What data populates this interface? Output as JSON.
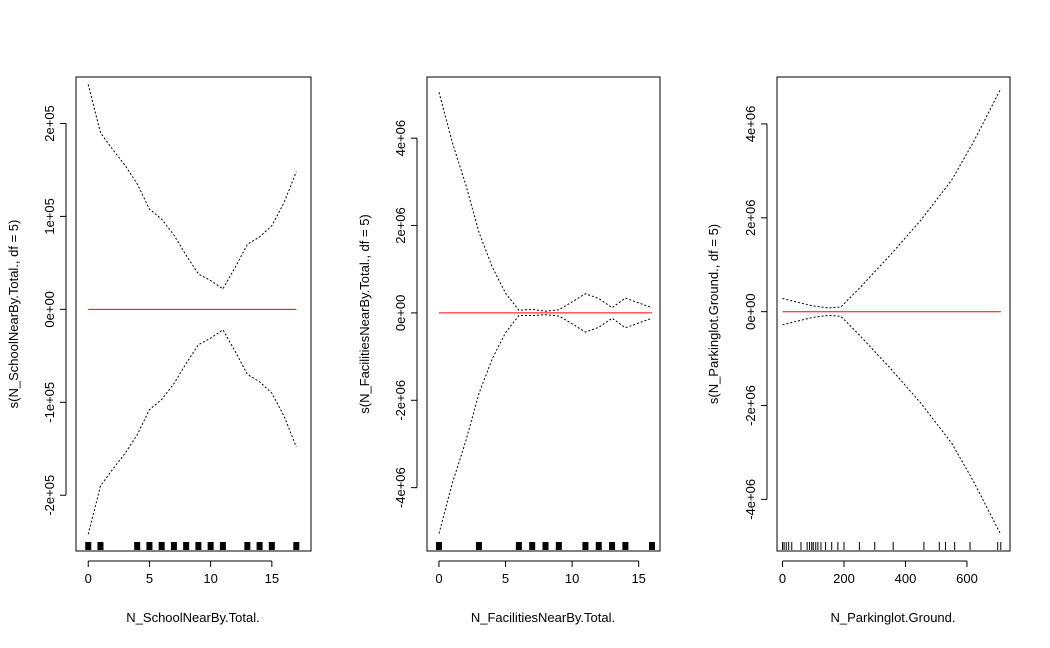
{
  "chart_data": [
    {
      "type": "line",
      "xlabel": "N_SchoolNearBy.Total.",
      "ylabel": "s(N_SchoolNearBy.Total., df = 5)",
      "xlim": [
        -1,
        18.2
      ],
      "ylim": [
        -260000,
        250000
      ],
      "x_ticks": [
        0,
        5,
        10,
        15
      ],
      "x_tick_labels": [
        "0",
        "5",
        "10",
        "15"
      ],
      "y_ticks": [
        -200000,
        -100000,
        0,
        100000,
        200000
      ],
      "y_tick_labels": [
        "-2e+05",
        "-1e+05",
        "0e+00",
        "1e+05",
        "2e+05"
      ],
      "series": [
        {
          "role": "fit",
          "color": "#ff0000",
          "x": [
            0,
            17
          ],
          "y": [
            0,
            0
          ]
        },
        {
          "role": "upper-band",
          "color": "#000000",
          "x": [
            0,
            1,
            2,
            3,
            4,
            5,
            6,
            7,
            8,
            9,
            10,
            11,
            12,
            13,
            14,
            15,
            16,
            17
          ],
          "y": [
            242000,
            190000,
            172000,
            155000,
            135000,
            108000,
            97000,
            80000,
            58000,
            38000,
            31000,
            22000,
            45000,
            70000,
            78000,
            90000,
            115000,
            148000
          ]
        },
        {
          "role": "lower-band",
          "color": "#000000",
          "x": [
            0,
            1,
            2,
            3,
            4,
            5,
            6,
            7,
            8,
            9,
            10,
            11,
            12,
            13,
            14,
            15,
            16,
            17
          ],
          "y": [
            -242000,
            -190000,
            -172000,
            -155000,
            -135000,
            -108000,
            -97000,
            -80000,
            -58000,
            -38000,
            -31000,
            -22000,
            -45000,
            -70000,
            -78000,
            -90000,
            -115000,
            -148000
          ]
        }
      ],
      "rug": [
        0,
        1,
        4,
        5,
        6,
        7,
        8,
        9,
        10,
        11,
        13,
        14,
        15,
        17
      ]
    },
    {
      "type": "line",
      "xlabel": "N_FacilitiesNearBy.Total.",
      "ylabel": "s(N_FacilitiesNearBy.Total., df = 5)",
      "xlim": [
        -0.9,
        16.6
      ],
      "ylim": [
        -5450000,
        5400000
      ],
      "x_ticks": [
        0,
        5,
        10,
        15
      ],
      "x_tick_labels": [
        "0",
        "5",
        "10",
        "15"
      ],
      "y_ticks": [
        -4000000,
        -2000000,
        0,
        2000000,
        4000000
      ],
      "y_tick_labels": [
        "-4e+06",
        "-2e+06",
        "0e+00",
        "2e+06",
        "4e+06"
      ],
      "series": [
        {
          "role": "fit",
          "color": "#ff0000",
          "x": [
            0,
            16
          ],
          "y": [
            0,
            0
          ]
        },
        {
          "role": "upper-band",
          "color": "#000000",
          "x": [
            0,
            1,
            2,
            3,
            4,
            5,
            6,
            7,
            8,
            9,
            10,
            11,
            12,
            13,
            14,
            15,
            16
          ],
          "y": [
            5050000,
            3900000,
            2950000,
            1850000,
            1050000,
            450000,
            60000,
            80000,
            40000,
            70000,
            250000,
            440000,
            330000,
            120000,
            340000,
            230000,
            120000
          ]
        },
        {
          "role": "lower-band",
          "color": "#000000",
          "x": [
            0,
            1,
            2,
            3,
            4,
            5,
            6,
            7,
            8,
            9,
            10,
            11,
            12,
            13,
            14,
            15,
            16
          ],
          "y": [
            -5050000,
            -3900000,
            -2950000,
            -1850000,
            -1050000,
            -450000,
            -60000,
            -60000,
            -40000,
            -70000,
            -250000,
            -440000,
            -330000,
            -120000,
            -340000,
            -230000,
            -120000
          ]
        }
      ],
      "rug": [
        0,
        3,
        6,
        7,
        8,
        9,
        11,
        12,
        13,
        14,
        16
      ]
    },
    {
      "type": "line",
      "xlabel": "N_Parkinglot.Ground.",
      "ylabel": "s(N_Parkinglot.Ground., df = 5)",
      "xlim": [
        -18,
        740
      ],
      "ylim": [
        -5100000,
        5000000
      ],
      "x_ticks": [
        0,
        200,
        400,
        600
      ],
      "x_tick_labels": [
        "0",
        "200",
        "400",
        "600"
      ],
      "y_ticks": [
        -4000000,
        -2000000,
        0,
        2000000,
        4000000
      ],
      "y_tick_labels": [
        "-4e+06",
        "-2e+06",
        "0e+00",
        "2e+06",
        "4e+06"
      ],
      "series": [
        {
          "role": "fit",
          "color": "#ff0000",
          "x": [
            0,
            710
          ],
          "y": [
            0,
            0
          ]
        },
        {
          "role": "upper-band",
          "color": "#000000",
          "x": [
            0,
            50,
            100,
            150,
            190,
            250,
            350,
            450,
            550,
            620,
            710
          ],
          "y": [
            280000,
            200000,
            120000,
            80000,
            100000,
            500000,
            1200000,
            1950000,
            2800000,
            3600000,
            4750000
          ]
        },
        {
          "role": "lower-band",
          "color": "#000000",
          "x": [
            0,
            50,
            100,
            150,
            190,
            250,
            350,
            450,
            550,
            620,
            710
          ],
          "y": [
            -280000,
            -200000,
            -120000,
            -80000,
            -100000,
            -500000,
            -1200000,
            -1950000,
            -2800000,
            -3600000,
            -4750000
          ]
        }
      ],
      "rug": [
        0,
        5,
        12,
        20,
        30,
        60,
        80,
        88,
        95,
        100,
        108,
        115,
        125,
        140,
        160,
        180,
        200,
        250,
        300,
        360,
        460,
        510,
        530,
        560,
        610,
        700,
        710
      ]
    }
  ]
}
